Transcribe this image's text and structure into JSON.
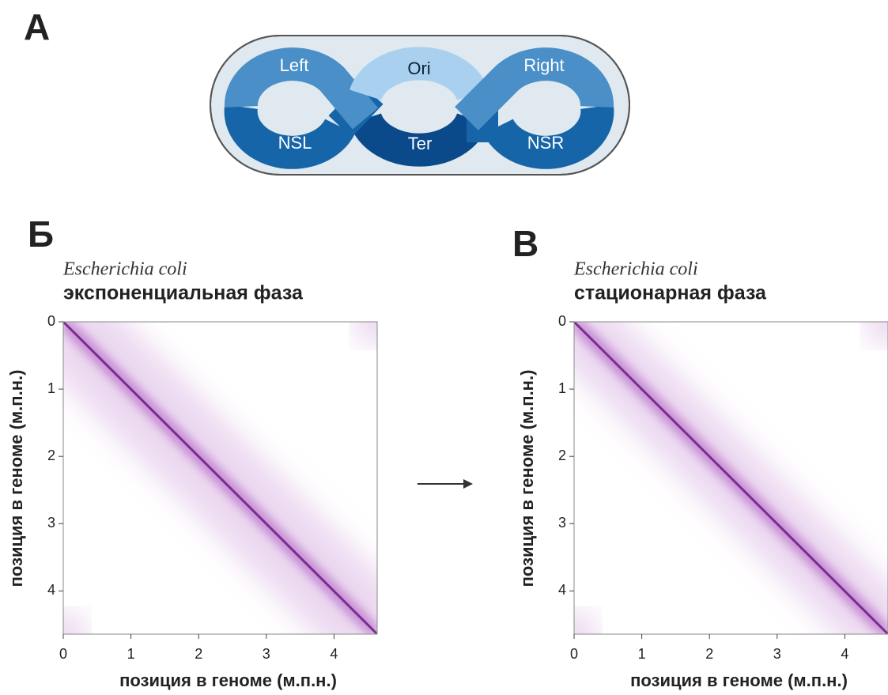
{
  "panel_a": {
    "label": "А",
    "segments": {
      "left": "Left",
      "ori": "Ori",
      "right": "Right",
      "nsl": "NSL",
      "ter": "Ter",
      "nsr": "NSR"
    }
  },
  "panels": [
    {
      "label": "Б",
      "organism": "Escherichia coli",
      "phase": "экспоненциальная фаза",
      "y_label": "позиция в геноме (м.п.н.)",
      "x_label": "позиция в геноме (м.п.н.)",
      "ticks": [
        "0",
        "1",
        "2",
        "3",
        "4"
      ]
    },
    {
      "label": "В",
      "organism": "Escherichia coli",
      "phase": "стационарная фаза",
      "y_label": "позиция в геноме (м.п.н.)",
      "x_label": "позиция в геноме (м.п.н.)",
      "ticks": [
        "0",
        "1",
        "2",
        "3",
        "4"
      ]
    }
  ]
}
